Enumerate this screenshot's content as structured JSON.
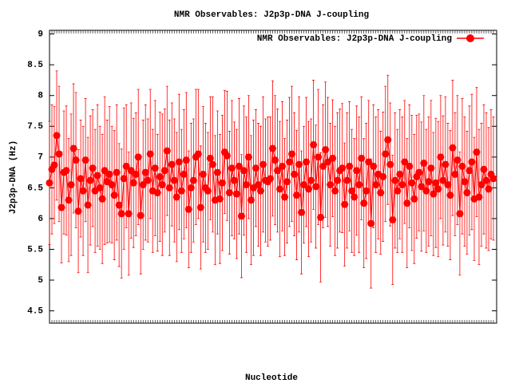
{
  "chart_data": {
    "type": "errorline",
    "title": "NMR Observables: J2p3p-DNA J-coupling",
    "x_label": "Nucleotide",
    "y_label": "J2p3p-DNA (Hz)",
    "ylim": [
      4.3,
      9.06
    ],
    "yticks": [
      4.5,
      5,
      5.5,
      6,
      6.5,
      7,
      7.5,
      8,
      8.5,
      9
    ],
    "legend": "top-right",
    "series": [
      {
        "name": "NMR Observables: J2p3p-DNA J-coupling",
        "color": "#ff0000",
        "values": [
          6.58,
          6.8,
          6.87,
          7.35,
          7.05,
          6.18,
          6.75,
          6.78,
          6.3,
          6.55,
          7.14,
          6.95,
          6.12,
          6.65,
          6.45,
          6.95,
          6.22,
          6.62,
          6.82,
          6.45,
          6.7,
          6.5,
          6.32,
          6.78,
          6.6,
          6.72,
          6.55,
          6.38,
          6.75,
          6.22,
          6.08,
          6.65,
          6.85,
          6.08,
          6.78,
          6.58,
          6.72,
          7.0,
          6.05,
          6.55,
          6.75,
          6.62,
          7.05,
          6.45,
          6.82,
          6.42,
          6.68,
          6.55,
          6.78,
          7.1,
          6.5,
          6.88,
          6.62,
          6.35,
          6.92,
          6.45,
          6.72,
          6.95,
          6.15,
          6.5,
          6.62,
          7.0,
          7.05,
          6.18,
          6.72,
          6.5,
          6.45,
          6.98,
          6.88,
          6.3,
          6.75,
          6.32,
          6.58,
          7.08,
          7.02,
          6.42,
          6.82,
          6.62,
          6.4,
          6.85,
          6.04,
          6.78,
          6.55,
          7.0,
          6.3,
          6.5,
          6.82,
          6.55,
          6.45,
          6.88,
          6.62,
          6.6,
          6.65,
          7.14,
          6.95,
          6.78,
          6.48,
          6.85,
          6.35,
          6.6,
          6.92,
          7.05,
          6.72,
          6.38,
          6.88,
          6.1,
          6.55,
          6.92,
          6.48,
          6.62,
          7.2,
          6.52,
          7.0,
          6.02,
          6.85,
          7.12,
          6.92,
          6.55,
          6.98,
          6.45,
          6.62,
          6.78,
          6.82,
          6.23,
          6.62,
          6.85,
          6.45,
          6.35,
          6.78,
          6.55,
          6.98,
          6.25,
          6.45,
          6.92,
          5.92,
          6.85,
          6.55,
          6.72,
          6.42,
          6.68,
          7.05,
          7.28,
          6.88,
          5.98,
          6.62,
          6.45,
          6.72,
          6.55,
          6.92,
          6.25,
          6.85,
          6.58,
          6.32,
          6.68,
          6.75,
          6.52,
          6.9,
          6.45,
          6.6,
          6.82,
          6.4,
          6.58,
          6.48,
          7.0,
          6.62,
          6.88,
          6.55,
          6.38,
          7.15,
          6.72,
          6.95,
          6.08,
          6.85,
          6.6,
          6.42,
          6.78,
          6.92,
          6.32,
          7.08,
          6.35,
          6.55,
          6.8,
          6.62,
          6.48,
          6.72,
          6.65
        ],
        "errors": [
          1.0,
          1.05,
          0.95,
          1.05,
          1.1,
          0.9,
          1.0,
          1.05,
          1.0,
          1.15,
          1.05,
          1.1,
          1.0,
          0.95,
          1.05,
          1.0,
          1.1,
          1.05,
          0.95,
          1.0,
          1.15,
          1.0,
          1.05,
          1.2,
          1.0,
          1.1,
          0.95,
          1.05,
          1.1,
          1.0,
          1.05,
          1.15,
          1.0,
          1.0,
          1.1,
          1.05,
          1.0,
          1.1,
          0.95,
          1.05,
          1.1,
          1.0,
          1.05,
          1.0,
          1.1,
          0.95,
          1.05,
          1.15,
          1.0,
          1.05,
          1.1,
          1.0,
          1.0,
          1.05,
          1.1,
          1.0,
          1.05,
          1.1,
          0.95,
          1.05,
          1.0,
          1.1,
          1.05,
          1.0,
          1.1,
          1.05,
          0.95,
          1.0,
          1.1,
          1.05,
          1.0,
          1.05,
          1.1,
          1.0,
          1.05,
          1.0,
          1.1,
          0.95,
          1.05,
          1.1,
          1.0,
          1.05,
          1.1,
          1.0,
          1.05,
          1.1,
          0.95,
          1.0,
          1.05,
          1.1,
          1.0,
          1.05,
          1.0,
          1.1,
          1.05,
          1.0,
          1.1,
          1.05,
          0.95,
          1.0,
          1.05,
          1.1,
          1.0,
          1.05,
          1.1,
          1.0,
          0.95,
          1.05,
          1.1,
          1.0,
          1.05,
          1.0,
          1.1,
          1.05,
          1.0,
          1.1,
          1.05,
          1.0,
          0.95,
          1.05,
          1.1,
          1.0,
          1.05,
          1.0,
          1.1,
          1.05,
          1.0,
          0.95,
          1.05,
          1.1,
          1.0,
          1.05,
          1.1,
          1.0,
          1.05,
          1.0,
          1.1,
          1.05,
          1.0,
          1.05,
          1.1,
          1.05,
          1.0,
          1.05,
          1.1,
          1.0,
          1.05,
          1.1,
          1.0,
          1.05,
          1.0,
          1.1,
          1.05,
          1.0,
          0.95,
          1.05,
          1.1,
          1.0,
          1.05,
          1.1,
          1.0,
          1.05,
          1.1,
          1.0,
          1.05,
          1.1,
          1.0,
          1.05,
          1.1,
          1.0,
          1.05,
          1.0,
          1.1,
          1.05,
          1.0,
          1.05,
          1.1,
          1.0,
          1.05,
          1.1,
          1.0,
          1.05,
          1.1,
          1.0,
          1.05,
          1.0
        ]
      }
    ]
  }
}
